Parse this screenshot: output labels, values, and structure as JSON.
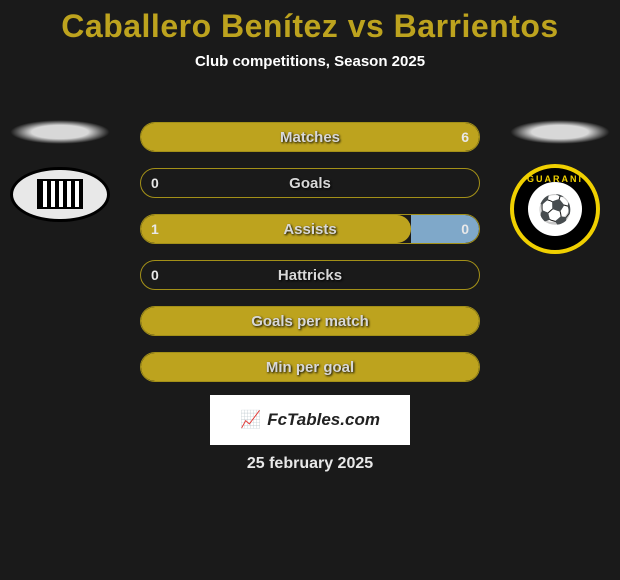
{
  "title": {
    "text": "Caballero Benítez vs Barrientos",
    "color": "#bda31e",
    "fontsize": 32
  },
  "subtitle": "Club competitions, Season 2025",
  "accent_color": "#bda31e",
  "accent_light": "#d0b93a",
  "bar_border_color": "#a39018",
  "background_color": "#1a1a1a",
  "logos": {
    "left": {
      "name": "club-libertad-logo",
      "ring": "#000000",
      "body": "#e8e8e8"
    },
    "right": {
      "name": "club-guarani-logo",
      "ring": "#f0d000",
      "body": "#000000",
      "arc_text": "GUARANI"
    }
  },
  "bars": [
    {
      "label": "Matches",
      "left": "",
      "right": "6",
      "left_pct": 50,
      "right_pct": 50,
      "left_color": "#bda31e",
      "right_color": "#bda31e"
    },
    {
      "label": "Goals",
      "left": "0",
      "right": "",
      "left_pct": 0,
      "right_pct": 0,
      "left_color": "#bda31e",
      "right_color": "#bda31e"
    },
    {
      "label": "Assists",
      "left": "1",
      "right": "0",
      "left_pct": 80,
      "right_pct": 20,
      "left_color": "#bda31e",
      "right_color": "#7fa8c9"
    },
    {
      "label": "Hattricks",
      "left": "0",
      "right": "",
      "left_pct": 0,
      "right_pct": 0,
      "left_color": "#bda31e",
      "right_color": "#bda31e"
    },
    {
      "label": "Goals per match",
      "left": "",
      "right": "",
      "left_pct": 100,
      "right_pct": 0,
      "left_color": "#bda31e",
      "right_color": "#bda31e"
    },
    {
      "label": "Min per goal",
      "left": "",
      "right": "",
      "left_pct": 100,
      "right_pct": 0,
      "left_color": "#bda31e",
      "right_color": "#bda31e"
    }
  ],
  "footer_brand": "FcTables.com",
  "date": "25 february 2025"
}
